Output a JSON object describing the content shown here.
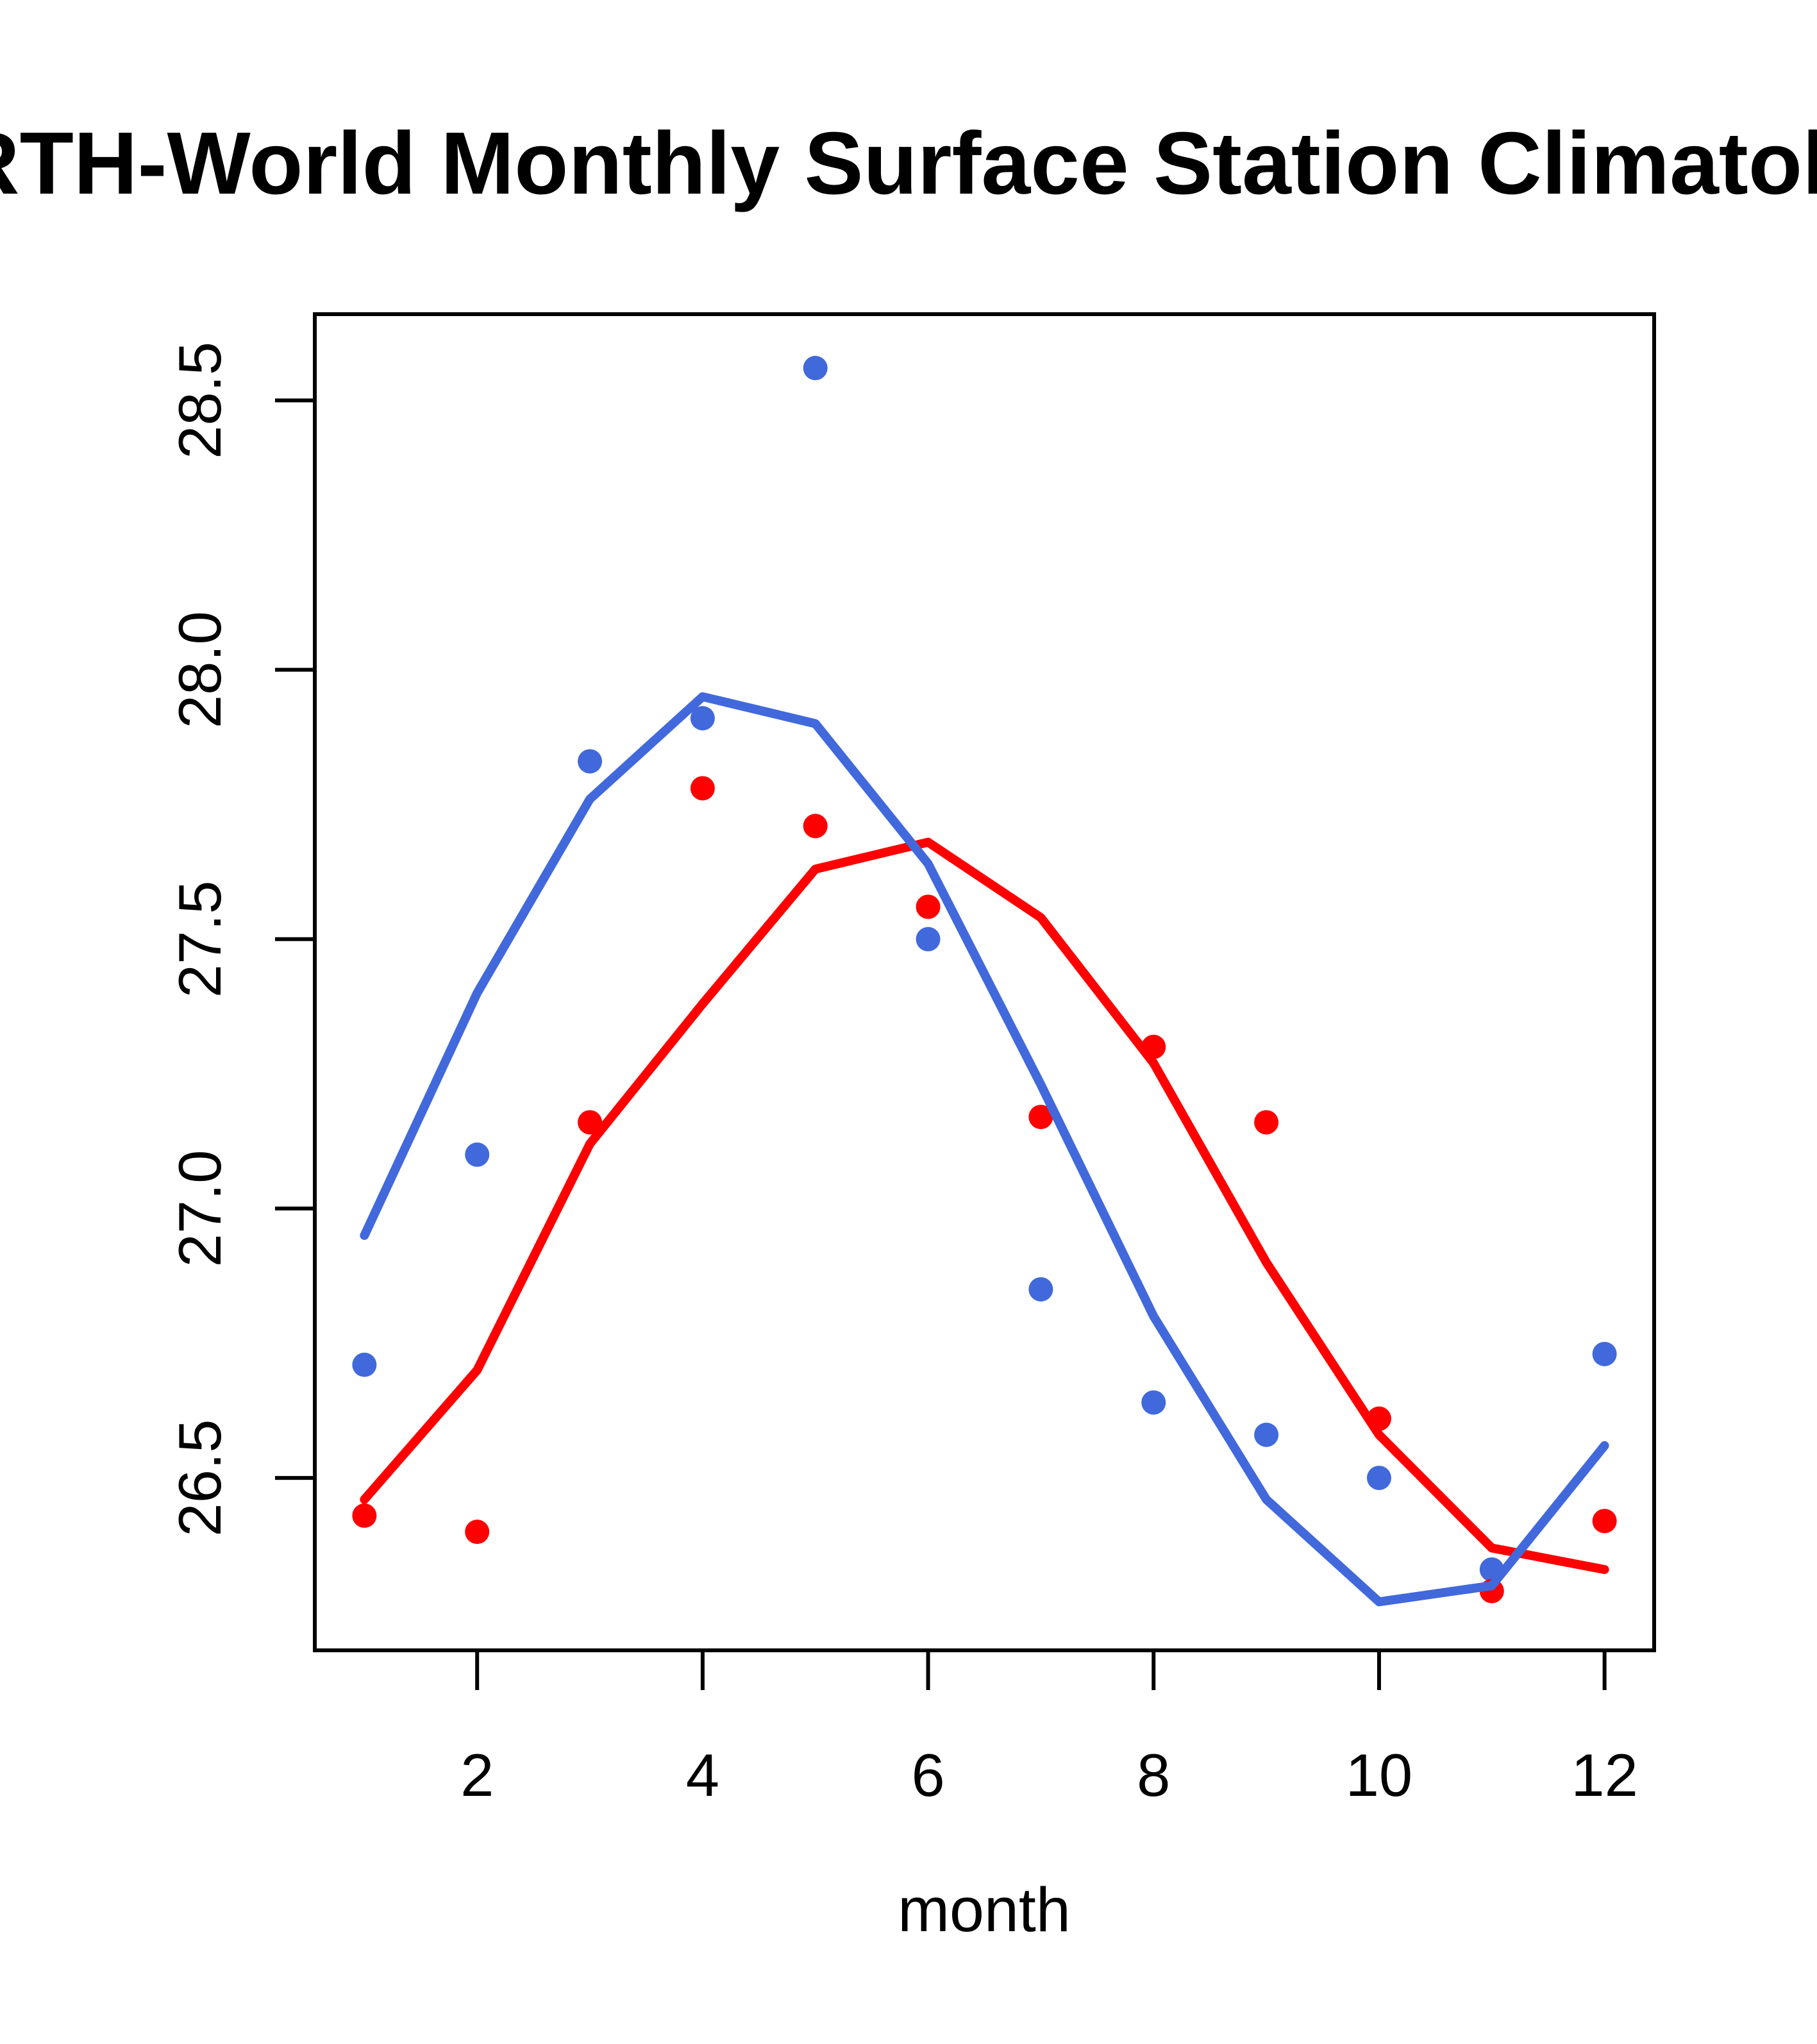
{
  "chart_data": {
    "type": "scatter",
    "title": "EARTH-World Monthly Surface Station Climatology",
    "xlabel": "month",
    "ylabel": "",
    "x": [
      1,
      2,
      3,
      4,
      5,
      6,
      7,
      8,
      9,
      10,
      11,
      12
    ],
    "x_ticks": [
      2,
      4,
      6,
      8,
      10,
      12
    ],
    "y_tick_labels": [
      "26.5",
      "27.0",
      "27.5",
      "28.0",
      "28.5"
    ],
    "xlim": [
      0.56,
      12.44
    ],
    "ylim": [
      26.18,
      28.66
    ],
    "grid": false,
    "legend": "none",
    "colors": {
      "blue": "#4169DC",
      "red": "#FF0000",
      "axis": "#000000"
    },
    "series": [
      {
        "name": "blue-observed-points",
        "style": "points",
        "color": "#4169DC",
        "values": [
          26.71,
          27.1,
          27.83,
          27.91,
          28.56,
          27.5,
          26.85,
          26.64,
          26.58,
          26.5,
          26.33,
          26.73
        ]
      },
      {
        "name": "red-observed-points",
        "style": "points",
        "color": "#FF0000",
        "values": [
          26.43,
          26.4,
          27.16,
          27.78,
          27.71,
          27.56,
          27.17,
          27.3,
          27.16,
          26.61,
          26.29,
          26.42
        ]
      },
      {
        "name": "red-smooth-line",
        "style": "line",
        "color": "#FF0000",
        "values": [
          26.46,
          26.7,
          27.12,
          27.38,
          27.63,
          27.68,
          27.54,
          27.27,
          26.9,
          26.58,
          26.37,
          26.33
        ]
      },
      {
        "name": "blue-smooth-line",
        "style": "line",
        "color": "#4169DC",
        "values": [
          26.95,
          27.4,
          27.76,
          27.95,
          27.9,
          27.64,
          27.23,
          26.8,
          26.46,
          26.27,
          26.3,
          26.56
        ]
      }
    ]
  }
}
